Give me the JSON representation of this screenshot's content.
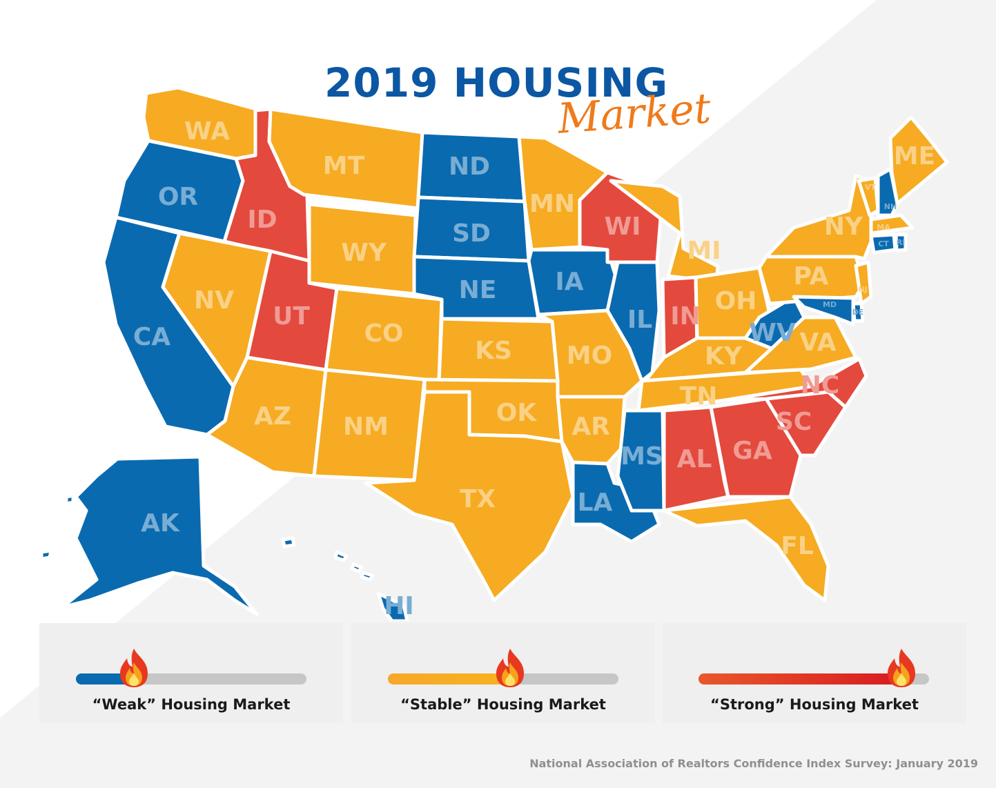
{
  "title": "2019 HOUSING",
  "subtitle": "Market",
  "colors": {
    "weak": "#0a6ab0",
    "stable": "#f6ab22",
    "strong": "#e4493d"
  },
  "states": [
    {
      "code": "WA",
      "level": "stable"
    },
    {
      "code": "OR",
      "level": "weak"
    },
    {
      "code": "CA",
      "level": "weak"
    },
    {
      "code": "ID",
      "level": "strong"
    },
    {
      "code": "NV",
      "level": "stable"
    },
    {
      "code": "UT",
      "level": "strong"
    },
    {
      "code": "AZ",
      "level": "stable"
    },
    {
      "code": "MT",
      "level": "stable"
    },
    {
      "code": "WY",
      "level": "stable"
    },
    {
      "code": "CO",
      "level": "stable"
    },
    {
      "code": "NM",
      "level": "stable"
    },
    {
      "code": "ND",
      "level": "weak"
    },
    {
      "code": "SD",
      "level": "weak"
    },
    {
      "code": "NE",
      "level": "weak"
    },
    {
      "code": "KS",
      "level": "stable"
    },
    {
      "code": "OK",
      "level": "stable"
    },
    {
      "code": "TX",
      "level": "stable"
    },
    {
      "code": "MN",
      "level": "stable"
    },
    {
      "code": "IA",
      "level": "weak"
    },
    {
      "code": "MO",
      "level": "stable"
    },
    {
      "code": "AR",
      "level": "stable"
    },
    {
      "code": "LA",
      "level": "weak"
    },
    {
      "code": "WI",
      "level": "strong"
    },
    {
      "code": "IL",
      "level": "weak"
    },
    {
      "code": "MI",
      "level": "stable"
    },
    {
      "code": "IN",
      "level": "strong"
    },
    {
      "code": "OH",
      "level": "stable"
    },
    {
      "code": "KY",
      "level": "stable"
    },
    {
      "code": "TN",
      "level": "stable"
    },
    {
      "code": "MS",
      "level": "weak"
    },
    {
      "code": "AL",
      "level": "strong"
    },
    {
      "code": "GA",
      "level": "strong"
    },
    {
      "code": "FL",
      "level": "stable"
    },
    {
      "code": "SC",
      "level": "strong"
    },
    {
      "code": "NC",
      "level": "strong"
    },
    {
      "code": "VA",
      "level": "stable"
    },
    {
      "code": "WV",
      "level": "weak"
    },
    {
      "code": "PA",
      "level": "stable"
    },
    {
      "code": "NY",
      "level": "stable"
    },
    {
      "code": "ME",
      "level": "stable"
    },
    {
      "code": "VT",
      "level": "stable"
    },
    {
      "code": "NH",
      "level": "weak"
    },
    {
      "code": "MA",
      "level": "stable"
    },
    {
      "code": "CT",
      "level": "weak"
    },
    {
      "code": "RI",
      "level": "weak"
    },
    {
      "code": "NJ",
      "level": "stable"
    },
    {
      "code": "DE",
      "level": "weak"
    },
    {
      "code": "MD",
      "level": "weak"
    },
    {
      "code": "AK",
      "level": "weak"
    },
    {
      "code": "HI",
      "level": "weak"
    }
  ],
  "legend": [
    {
      "label": "“Weak” Housing Market",
      "level": "weak",
      "position": 0.25
    },
    {
      "label": "“Stable” Housing Market",
      "level": "stable",
      "position": 0.53
    },
    {
      "label": "“Strong” Housing Market",
      "level": "strong",
      "position": 0.88
    }
  ],
  "source": "National Association of Realtors Confidence Index Survey: January 2019"
}
